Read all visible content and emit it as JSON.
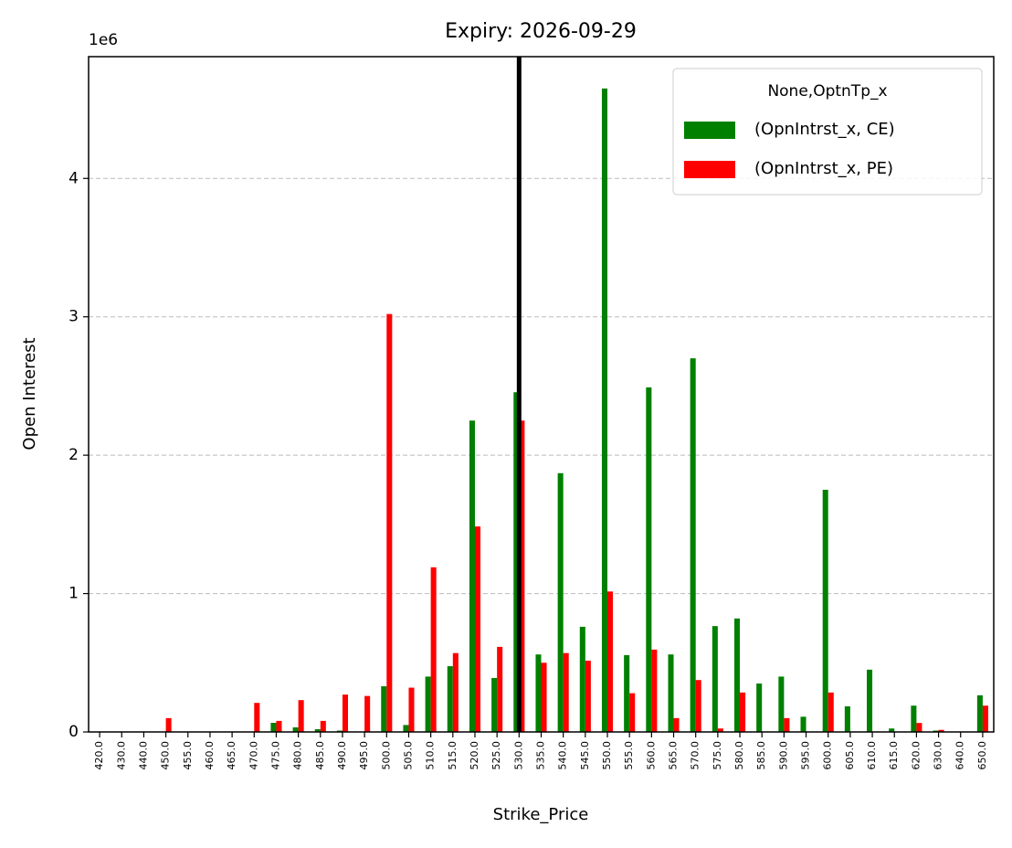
{
  "chart_data": {
    "type": "bar",
    "title": "Expiry: 2026-09-29",
    "x_label": "Strike_Price",
    "y_label": "Open Interest",
    "y_offset_label": "1e6",
    "legend_title": "None,OptnTp_x",
    "legend_position": "upper right",
    "grid": true,
    "vline_category": "530.0",
    "categories": [
      "420.0",
      "430.0",
      "440.0",
      "450.0",
      "455.0",
      "460.0",
      "465.0",
      "470.0",
      "475.0",
      "480.0",
      "485.0",
      "490.0",
      "495.0",
      "500.0",
      "505.0",
      "510.0",
      "515.0",
      "520.0",
      "525.0",
      "530.0",
      "535.0",
      "540.0",
      "545.0",
      "550.0",
      "555.0",
      "560.0",
      "565.0",
      "570.0",
      "575.0",
      "580.0",
      "585.0",
      "590.0",
      "595.0",
      "600.0",
      "605.0",
      "610.0",
      "615.0",
      "620.0",
      "630.0",
      "640.0",
      "650.0"
    ],
    "series": [
      {
        "name": "(OpnIntrst_x, CE)",
        "color": "#008000",
        "values": [
          0,
          0,
          0,
          0,
          0,
          0,
          0,
          0,
          66000,
          33000,
          20000,
          10000,
          0,
          330000,
          50000,
          400000,
          475000,
          2250000,
          390000,
          2455000,
          560000,
          1870000,
          760000,
          4650000,
          555000,
          2490000,
          560000,
          2700000,
          765000,
          820000,
          350000,
          400000,
          110000,
          1750000,
          185000,
          450000,
          25000,
          190000,
          10000,
          0,
          265000
        ]
      },
      {
        "name": "(OpnIntrst_x, PE)",
        "color": "#ff0000",
        "values": [
          0,
          0,
          0,
          100000,
          0,
          0,
          0,
          210000,
          80000,
          230000,
          80000,
          270000,
          260000,
          3020000,
          320000,
          1190000,
          570000,
          1485000,
          615000,
          2250000,
          500000,
          570000,
          515000,
          1015000,
          280000,
          595000,
          100000,
          375000,
          25000,
          285000,
          0,
          100000,
          0,
          285000,
          0,
          0,
          0,
          65000,
          15000,
          0,
          190000
        ]
      }
    ],
    "ylim": [
      0,
      4880000
    ],
    "yticks": [
      {
        "value": 0,
        "label": "0"
      },
      {
        "value": 1000000,
        "label": "1"
      },
      {
        "value": 2000000,
        "label": "2"
      },
      {
        "value": 3000000,
        "label": "3"
      },
      {
        "value": 4000000,
        "label": "4"
      }
    ]
  }
}
